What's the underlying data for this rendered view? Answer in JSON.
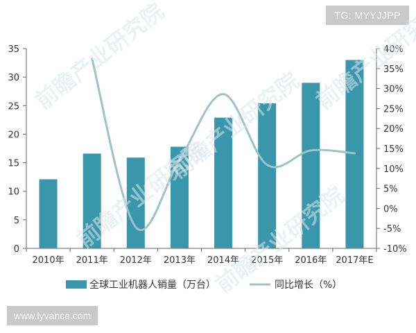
{
  "overlays": {
    "top_tag": "TG: MYYJJPP",
    "bottom_tag": "www.lyvance.com",
    "watermark": "前瞻产业研究院"
  },
  "chart_data": {
    "type": "bar",
    "categories": [
      "2010年",
      "2011年",
      "2012年",
      "2013年",
      "2014年",
      "2015年",
      "2016年",
      "2017年E"
    ],
    "series": [
      {
        "name": "全球工业机器人销量（万台）",
        "kind": "bar",
        "axis": "left",
        "color": "#3a96ab",
        "values": [
          12.1,
          16.6,
          15.9,
          17.8,
          22.9,
          25.4,
          29.0,
          33.0
        ]
      },
      {
        "name": "同比增长（%）",
        "kind": "line",
        "axis": "right",
        "color": "#9cc3c7",
        "values": [
          null,
          37.5,
          -4.7,
          12.1,
          28.6,
          10.9,
          14.5,
          13.8
        ]
      }
    ],
    "y_left": {
      "min": 0,
      "max": 35,
      "step": 5,
      "ticks": [
        "0",
        "5",
        "10",
        "15",
        "20",
        "25",
        "30",
        "35"
      ]
    },
    "y_right": {
      "min": -10,
      "max": 40,
      "step": 5,
      "ticks": [
        "-10%",
        "-5%",
        "0%",
        "5%",
        "10%",
        "15%",
        "20%",
        "25%",
        "30%",
        "35%",
        "40%"
      ]
    },
    "grid": false,
    "legend_position": "bottom"
  }
}
